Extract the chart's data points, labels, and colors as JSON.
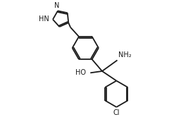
{
  "bg_color": "#ffffff",
  "line_color": "#1a1a1a",
  "line_width": 1.3,
  "font_size_label": 7.0,
  "figsize": [
    2.57,
    1.66
  ],
  "dpi": 100,
  "xlim": [
    0,
    10
  ],
  "ylim": [
    0,
    6.5
  ]
}
